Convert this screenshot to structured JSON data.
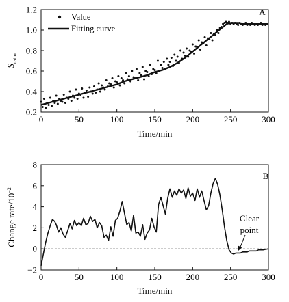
{
  "chart_data": [
    {
      "panel_label": "A",
      "type": "scatter",
      "xlabel": "Time/min",
      "ylabel_main": "S",
      "ylabel_sub": "ratio",
      "xlim": [
        0,
        300
      ],
      "ylim": [
        0.2,
        1.2
      ],
      "xticks": [
        0,
        50,
        100,
        150,
        200,
        250,
        300
      ],
      "yticks": [
        "0.2",
        "0.4",
        "0.6",
        "0.8",
        "1.0",
        "1.2"
      ],
      "legend_position": "top-left",
      "series": [
        {
          "name": "Value",
          "kind": "points",
          "x": [
            0,
            2,
            4,
            6,
            8,
            10,
            12,
            14,
            16,
            18,
            20,
            22,
            24,
            26,
            28,
            30,
            32,
            34,
            36,
            38,
            40,
            42,
            44,
            46,
            48,
            50,
            52,
            54,
            56,
            58,
            60,
            62,
            64,
            66,
            68,
            70,
            72,
            74,
            76,
            78,
            80,
            82,
            84,
            86,
            88,
            90,
            92,
            94,
            96,
            98,
            100,
            102,
            104,
            106,
            108,
            110,
            112,
            114,
            116,
            118,
            120,
            122,
            124,
            126,
            128,
            130,
            132,
            134,
            136,
            138,
            140,
            142,
            144,
            146,
            148,
            150,
            152,
            154,
            156,
            158,
            160,
            162,
            164,
            166,
            168,
            170,
            172,
            174,
            176,
            178,
            180,
            182,
            184,
            186,
            188,
            190,
            192,
            194,
            196,
            198,
            200,
            202,
            204,
            206,
            208,
            210,
            212,
            214,
            216,
            218,
            220,
            222,
            224,
            226,
            228,
            230,
            232,
            234,
            236,
            238,
            240,
            242,
            244,
            246,
            248,
            250,
            252,
            254,
            256,
            258,
            260,
            262,
            264,
            266,
            268,
            270,
            272,
            274,
            276,
            278,
            280,
            282,
            284,
            286,
            288,
            290,
            292,
            294,
            296,
            298
          ],
          "y": [
            0.3,
            0.25,
            0.33,
            0.24,
            0.29,
            0.27,
            0.34,
            0.26,
            0.31,
            0.29,
            0.36,
            0.28,
            0.33,
            0.31,
            0.3,
            0.37,
            0.29,
            0.34,
            0.33,
            0.4,
            0.31,
            0.36,
            0.34,
            0.42,
            0.33,
            0.38,
            0.37,
            0.43,
            0.34,
            0.39,
            0.41,
            0.35,
            0.44,
            0.4,
            0.38,
            0.45,
            0.39,
            0.42,
            0.48,
            0.4,
            0.46,
            0.44,
            0.42,
            0.51,
            0.45,
            0.48,
            0.47,
            0.53,
            0.44,
            0.5,
            0.49,
            0.55,
            0.46,
            0.53,
            0.51,
            0.48,
            0.58,
            0.52,
            0.55,
            0.5,
            0.6,
            0.54,
            0.53,
            0.62,
            0.51,
            0.58,
            0.56,
            0.64,
            0.52,
            0.6,
            0.59,
            0.55,
            0.66,
            0.57,
            0.62,
            0.61,
            0.58,
            0.7,
            0.6,
            0.66,
            0.63,
            0.69,
            0.62,
            0.72,
            0.66,
            0.69,
            0.73,
            0.65,
            0.76,
            0.7,
            0.74,
            0.68,
            0.8,
            0.72,
            0.78,
            0.75,
            0.82,
            0.74,
            0.8,
            0.79,
            0.86,
            0.77,
            0.84,
            0.83,
            0.9,
            0.81,
            0.88,
            0.87,
            0.93,
            0.85,
            0.92,
            0.91,
            0.97,
            0.9,
            0.96,
            0.95,
            1.0,
            0.97,
            1.02,
            1.03,
            1.06,
            1.07,
            1.08,
            1.07,
            1.08,
            1.06,
            1.07,
            1.06,
            1.07,
            1.06,
            1.05,
            1.07,
            1.06,
            1.05,
            1.06,
            1.07,
            1.05,
            1.06,
            1.05,
            1.07,
            1.06,
            1.05,
            1.06,
            1.05,
            1.06,
            1.07,
            1.05,
            1.06,
            1.05,
            1.06
          ]
        },
        {
          "name": "Fitting curve",
          "kind": "line",
          "x": [
            0,
            10,
            20,
            30,
            40,
            50,
            60,
            70,
            80,
            90,
            100,
            110,
            120,
            130,
            140,
            150,
            160,
            170,
            180,
            190,
            200,
            210,
            220,
            230,
            240,
            245,
            250,
            260,
            270,
            280,
            290,
            300
          ],
          "y": [
            0.27,
            0.29,
            0.31,
            0.33,
            0.35,
            0.37,
            0.39,
            0.41,
            0.43,
            0.45,
            0.47,
            0.5,
            0.52,
            0.54,
            0.56,
            0.59,
            0.61,
            0.64,
            0.68,
            0.73,
            0.79,
            0.85,
            0.91,
            0.97,
            1.03,
            1.06,
            1.07,
            1.07,
            1.06,
            1.06,
            1.06,
            1.06
          ]
        }
      ]
    },
    {
      "panel_label": "B",
      "type": "line",
      "xlabel": "Time/min",
      "ylabel_main": "Change rate/10",
      "ylabel_sup": "−2",
      "xlim": [
        0,
        300
      ],
      "ylim": [
        -2,
        8
      ],
      "xticks": [
        0,
        50,
        100,
        150,
        200,
        250,
        300
      ],
      "yticks": [
        "−2",
        "0",
        "2",
        "4",
        "6",
        "8"
      ],
      "zero_line": "dashed",
      "annotation": {
        "lines": [
          "Clear",
          "point"
        ],
        "x": 260,
        "y": -0.2
      },
      "series": [
        {
          "name": "Change rate",
          "x": [
            0,
            3,
            6,
            9,
            12,
            15,
            18,
            20,
            23,
            26,
            29,
            32,
            35,
            38,
            41,
            44,
            47,
            50,
            53,
            56,
            59,
            62,
            65,
            68,
            71,
            74,
            77,
            80,
            83,
            86,
            89,
            92,
            95,
            98,
            101,
            104,
            107,
            110,
            113,
            116,
            119,
            122,
            125,
            128,
            131,
            134,
            137,
            140,
            143,
            146,
            149,
            152,
            155,
            158,
            161,
            164,
            167,
            170,
            173,
            176,
            179,
            182,
            185,
            188,
            191,
            194,
            197,
            200,
            203,
            206,
            209,
            212,
            215,
            218,
            221,
            224,
            227,
            230,
            233,
            236,
            239,
            242,
            245,
            248,
            251,
            254,
            257,
            260,
            263,
            266,
            269,
            272,
            275,
            278,
            281,
            284,
            287,
            290,
            293,
            296,
            300
          ],
          "y": [
            -1.6,
            -0.5,
            0.6,
            1.5,
            2.2,
            2.8,
            2.6,
            2.3,
            1.6,
            2.0,
            1.4,
            1.1,
            1.7,
            2.4,
            1.9,
            2.7,
            2.2,
            2.5,
            2.2,
            2.9,
            2.3,
            2.4,
            3.1,
            2.6,
            2.8,
            2.0,
            2.5,
            2.2,
            1.1,
            1.3,
            0.8,
            2.1,
            1.2,
            2.7,
            2.9,
            3.6,
            4.5,
            3.4,
            2.3,
            2.5,
            1.7,
            3.2,
            1.5,
            1.6,
            1.2,
            2.3,
            0.9,
            1.5,
            1.8,
            2.9,
            2.1,
            1.6,
            4.2,
            4.9,
            4.1,
            3.3,
            4.8,
            5.7,
            4.9,
            5.5,
            5.1,
            5.7,
            5.3,
            5.6,
            4.8,
            5.8,
            5.0,
            5.3,
            4.6,
            5.7,
            4.9,
            5.5,
            4.6,
            3.7,
            4.1,
            5.3,
            6.2,
            6.7,
            6.1,
            5.1,
            3.7,
            2.1,
            0.8,
            -0.1,
            -0.4,
            -0.5,
            -0.4,
            -0.4,
            -0.4,
            -0.3,
            -0.3,
            -0.3,
            -0.2,
            -0.2,
            -0.2,
            -0.2,
            -0.1,
            -0.1,
            -0.1,
            -0.05,
            0.0
          ]
        }
      ]
    }
  ]
}
